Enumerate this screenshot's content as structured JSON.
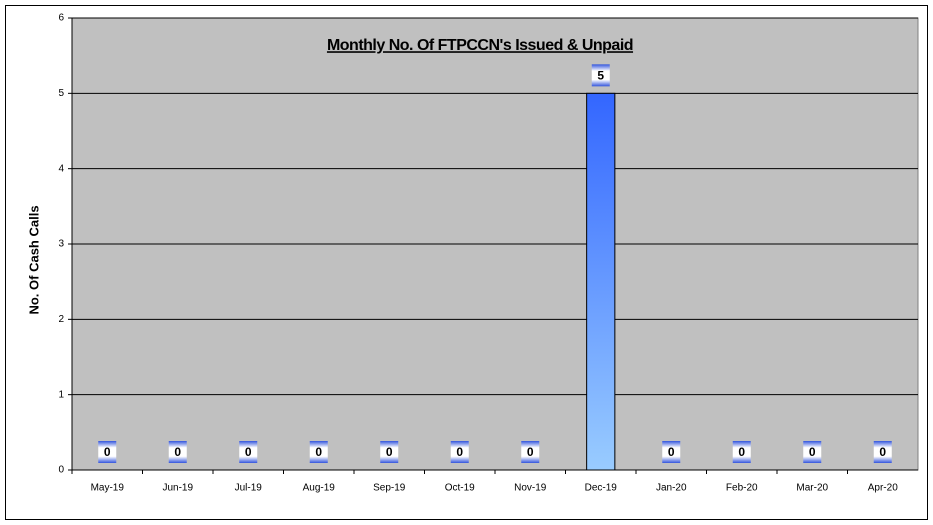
{
  "chart_data": {
    "type": "bar",
    "title": "Monthly No. Of FTPCCN's Issued & Unpaid",
    "y_label": "No. Of Cash Calls",
    "categories": [
      "May-19",
      "Jun-19",
      "Jul-19",
      "Aug-19",
      "Sep-19",
      "Oct-19",
      "Nov-19",
      "Dec-19",
      "Jan-20",
      "Feb-20",
      "Mar-20",
      "Apr-20"
    ],
    "values": [
      0,
      0,
      0,
      0,
      0,
      0,
      0,
      5,
      0,
      0,
      0,
      0
    ],
    "color": "#3366ff",
    "ylim": [
      0,
      6
    ],
    "yticks": [
      0,
      1,
      2,
      3,
      4,
      5,
      6
    ],
    "grid": true
  }
}
